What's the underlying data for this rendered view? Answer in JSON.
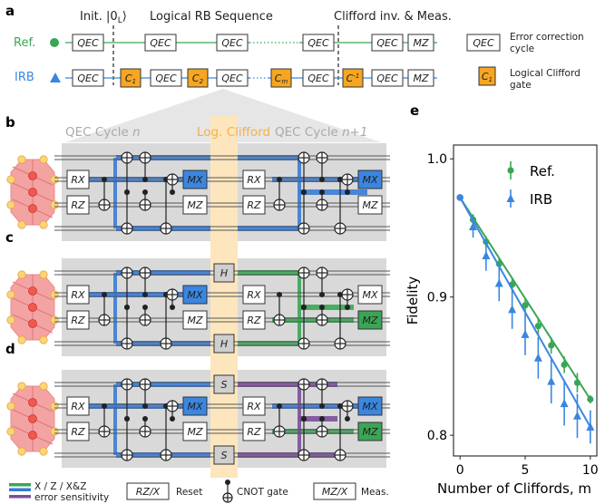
{
  "panels": {
    "a": "a",
    "b": "b",
    "c": "c",
    "d": "d",
    "e": "e"
  },
  "headers": {
    "init": "Init. |0",
    "init_sub": "L",
    "init_close": "⟩",
    "rb": "Logical RB Sequence",
    "inv": "Clifford inv. & Meas."
  },
  "rows": {
    "ref": "Ref.",
    "irb": "IRB"
  },
  "gates": {
    "qec": "QEC",
    "mz": "MZ",
    "mx": "MX",
    "rx": "RX",
    "rz": "RZ",
    "h": "H",
    "s": "S",
    "c1": "C",
    "c1_sub": "1",
    "c2": "C",
    "c2_sub": "2",
    "cm": "C",
    "cm_sub": "m",
    "cinv": "C",
    "cinv_sup": "-1"
  },
  "legend_a": {
    "qec_text_1": "Error correction",
    "qec_text_2": "cycle",
    "clif_text_1": "Logical Clifford",
    "clif_text_2": "gate"
  },
  "cycle_labels": {
    "cycle_n": "QEC Cycle ",
    "cycle_n_var": "n",
    "log_clifford": "Log. Clifford",
    "cycle_n1": "QEC Cycle ",
    "cycle_n1_var": "n+1"
  },
  "bottom_legend": {
    "sens_1": "X / Z / X&Z",
    "sens_2": "error sensitivity",
    "reset_box": "RZ/X",
    "reset": "Reset",
    "cnot": "CNOT gate",
    "meas_box": "MZ/X",
    "meas": "Meas."
  },
  "colors": {
    "ref": "#3aa655",
    "irb": "#3a86e0",
    "clifford": "#f5a623",
    "clifford_band": "#fde6bd",
    "cycle_bg": "#d9d9d9",
    "x_sens": "#3aa655",
    "z_sens": "#3a7bd5",
    "xz_sens": "#7a4f9a",
    "code_fill": "#f4a3a3",
    "data_qubit": "#f05a4e",
    "ancilla": "#fbd47a"
  },
  "chart_data": {
    "type": "scatter",
    "xlabel": "Number of Cliffords, m",
    "ylabel": "Fidelity",
    "xlim": [
      -0.5,
      10.5
    ],
    "ylim": [
      0.785,
      1.01
    ],
    "xticks": [
      0,
      5,
      10
    ],
    "yticks": [
      0.8,
      0.9,
      1.0
    ],
    "xtick_labels": [
      "0",
      "5",
      "10"
    ],
    "ytick_labels": [
      "0.8",
      "0.9",
      "1.0"
    ],
    "legend_position": "top-right",
    "series": [
      {
        "name": "Ref.",
        "marker": "circle",
        "color": "#3aa655",
        "x": [
          0,
          1,
          2,
          3,
          4,
          5,
          6,
          7,
          8,
          9,
          10
        ],
        "y": [
          0.972,
          0.956,
          0.94,
          0.924,
          0.909,
          0.894,
          0.879,
          0.865,
          0.851,
          0.838,
          0.826
        ],
        "err": [
          0.002,
          0.004,
          0.004,
          0.004,
          0.005,
          0.005,
          0.006,
          0.006,
          0.006,
          0.007,
          0.003
        ],
        "fit": [
          0.972,
          0.826
        ]
      },
      {
        "name": "IRB",
        "marker": "triangle",
        "color": "#3a86e0",
        "x": [
          1,
          2,
          3,
          4,
          5,
          6,
          7,
          8,
          9,
          10
        ],
        "y": [
          0.951,
          0.93,
          0.91,
          0.891,
          0.873,
          0.856,
          0.839,
          0.823,
          0.814,
          0.806
        ],
        "err": [
          0.008,
          0.011,
          0.013,
          0.014,
          0.015,
          0.015,
          0.016,
          0.016,
          0.016,
          0.012
        ],
        "fit": [
          0.972,
          0.806
        ]
      }
    ]
  }
}
